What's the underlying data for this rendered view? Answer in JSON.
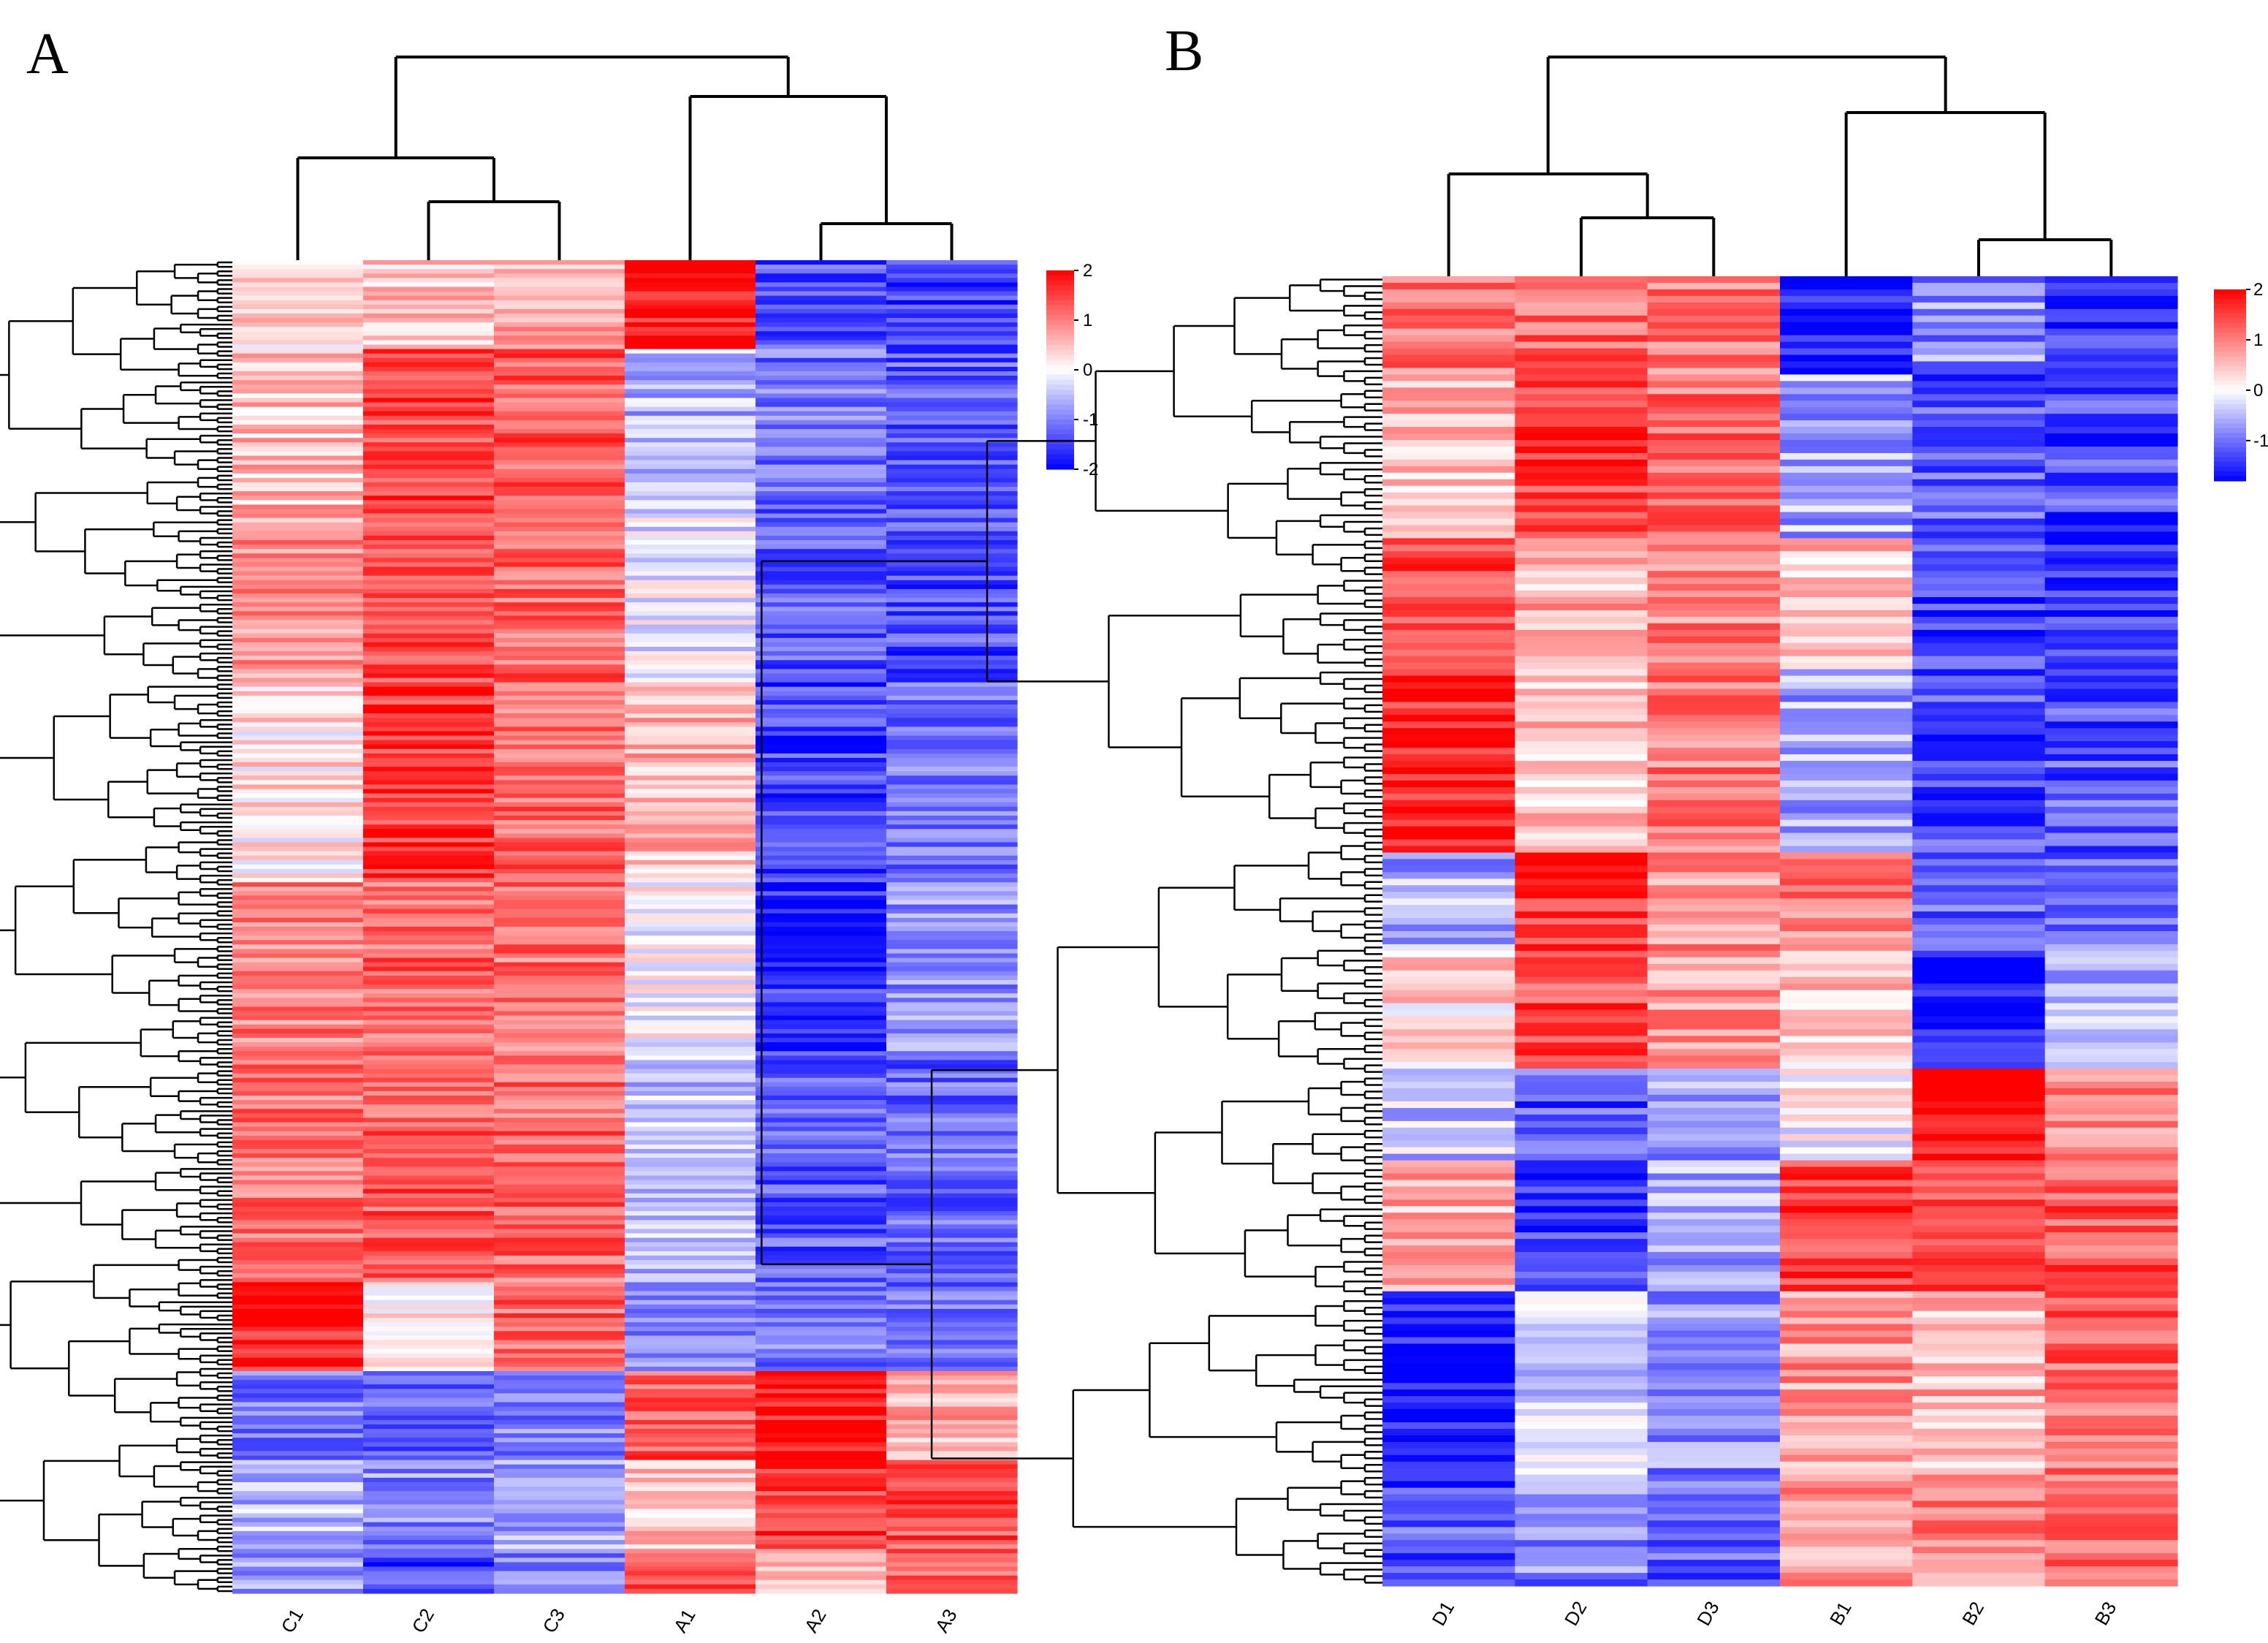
{
  "chart_data": [
    {
      "type": "heatmap",
      "panel_label": "A",
      "columns": [
        "C1",
        "C2",
        "C3",
        "A1",
        "A2",
        "A3"
      ],
      "column_order_note": "clustered",
      "n_rows": 300,
      "color_scale": {
        "low": "#0000ff",
        "mid": "#ffffff",
        "high": "#ff0000",
        "min": -2,
        "max": 2
      },
      "colorbar_ticks": [
        "2",
        "1",
        "0",
        "-1",
        "-2"
      ],
      "row_blocks": [
        {
          "rows": 20,
          "values": [
            0.3,
            0.4,
            0.7,
            1.8,
            -1.4,
            -1.5
          ]
        },
        {
          "rows": 35,
          "values": [
            0.5,
            1.5,
            1.3,
            -0.6,
            -1.1,
            -1.3
          ]
        },
        {
          "rows": 40,
          "values": [
            0.8,
            1.5,
            1.2,
            -0.2,
            -1.3,
            -1.4
          ]
        },
        {
          "rows": 45,
          "values": [
            0.2,
            1.6,
            1.2,
            0.6,
            -1.5,
            -1.1
          ]
        },
        {
          "rows": 40,
          "values": [
            1.0,
            1.2,
            1.1,
            0.0,
            -1.6,
            -0.9
          ]
        },
        {
          "rows": 50,
          "values": [
            1.1,
            1.3,
            1.2,
            -0.5,
            -1.3,
            -1.2
          ]
        },
        {
          "rows": 20,
          "values": [
            1.8,
            0.2,
            1.2,
            -0.9,
            -1.0,
            -1.1
          ]
        },
        {
          "rows": 20,
          "values": [
            -1.1,
            -1.2,
            -1.0,
            1.3,
            1.9,
            0.6
          ]
        },
        {
          "rows": 20,
          "values": [
            -0.6,
            -0.9,
            -0.7,
            0.4,
            1.6,
            1.4
          ]
        },
        {
          "rows": 10,
          "values": [
            -0.8,
            -1.5,
            -0.9,
            1.4,
            0.6,
            1.3
          ]
        }
      ],
      "column_dendrogram": "((C1,(C2,C3)),(A1,(A2,A3)))"
    },
    {
      "type": "heatmap",
      "panel_label": "B",
      "columns": [
        "D1",
        "D2",
        "D3",
        "B1",
        "B2",
        "B3"
      ],
      "column_order_note": "clustered",
      "n_rows": 200,
      "color_scale": {
        "low": "#0000ff",
        "mid": "#ffffff",
        "high": "#ff0000",
        "min": -1.8,
        "max": 2
      },
      "colorbar_ticks": [
        "2",
        "1",
        "0",
        "-1"
      ],
      "row_blocks": [
        {
          "rows": 15,
          "values": [
            1.0,
            1.2,
            1.0,
            -1.6,
            -0.8,
            -1.4
          ]
        },
        {
          "rows": 25,
          "values": [
            0.5,
            1.5,
            1.1,
            -0.6,
            -1.2,
            -1.3
          ]
        },
        {
          "rows": 20,
          "values": [
            1.4,
            0.6,
            1.0,
            0.5,
            -1.4,
            -1.4
          ]
        },
        {
          "rows": 28,
          "values": [
            1.7,
            0.5,
            1.0,
            -0.6,
            -1.3,
            -1.2
          ]
        },
        {
          "rows": 15,
          "values": [
            -0.6,
            1.6,
            0.9,
            1.0,
            -1.0,
            -0.9
          ]
        },
        {
          "rows": 18,
          "values": [
            0.3,
            1.4,
            0.8,
            0.4,
            -1.7,
            -0.5
          ]
        },
        {
          "rows": 14,
          "values": [
            -0.4,
            -1.2,
            -0.7,
            0.0,
            1.9,
            0.9
          ]
        },
        {
          "rows": 20,
          "values": [
            0.6,
            -1.4,
            -0.6,
            1.5,
            1.3,
            1.3
          ]
        },
        {
          "rows": 30,
          "values": [
            -1.7,
            -0.4,
            -0.8,
            0.8,
            0.6,
            1.2
          ]
        },
        {
          "rows": 15,
          "values": [
            -1.2,
            -0.9,
            -1.1,
            0.8,
            1.0,
            1.2
          ]
        }
      ],
      "column_dendrogram": "((D1,(D2,D3)),(B1,(B2,B3)))"
    }
  ]
}
